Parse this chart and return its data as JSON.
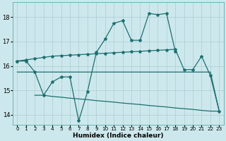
{
  "background_color": "#cde8ec",
  "grid_color": "#aacdd4",
  "line_color": "#1a7070",
  "x_label": "Humidex (Indice chaleur)",
  "xlim": [
    -0.5,
    23.5
  ],
  "ylim": [
    13.6,
    18.6
  ],
  "yticks": [
    14,
    15,
    16,
    17,
    18
  ],
  "xtick_labels": [
    "0",
    "1",
    "2",
    "3",
    "4",
    "5",
    "6",
    "7",
    "8",
    "9",
    "10",
    "11",
    "12",
    "13",
    "14",
    "15",
    "16",
    "17",
    "18",
    "19",
    "20",
    "21",
    "22",
    "23"
  ],
  "line1_x": [
    0,
    1,
    2,
    3,
    4,
    5,
    6,
    7,
    8,
    9,
    10,
    11,
    12,
    13,
    14,
    15,
    16,
    17,
    18
  ],
  "line1_y": [
    16.2,
    16.2,
    15.75,
    14.8,
    15.35,
    15.55,
    15.55,
    13.75,
    14.95,
    16.55,
    17.1,
    17.75,
    17.85,
    17.05,
    17.05,
    18.15,
    18.1,
    18.15,
    16.6
  ],
  "line2_x": [
    0,
    1,
    2,
    3,
    4,
    5,
    6,
    7,
    8,
    9,
    10,
    11,
    12,
    13,
    14,
    15,
    16,
    17,
    18,
    19,
    20,
    21,
    22,
    23
  ],
  "line2_y": [
    16.2,
    16.25,
    16.3,
    16.35,
    16.4,
    16.42,
    16.44,
    16.46,
    16.48,
    16.5,
    16.52,
    16.54,
    16.56,
    16.58,
    16.6,
    16.62,
    16.64,
    16.66,
    16.68,
    15.85,
    15.85,
    16.4,
    15.6,
    14.15
  ],
  "line3_x": [
    0,
    1,
    2,
    3,
    4,
    5,
    6,
    7,
    8,
    9,
    10,
    11,
    12,
    13,
    14,
    15,
    16,
    17,
    18,
    19,
    20,
    21,
    22,
    23
  ],
  "line3_y": [
    15.75,
    15.75,
    15.75,
    15.75,
    15.75,
    15.75,
    15.75,
    15.75,
    15.75,
    15.75,
    15.75,
    15.75,
    15.75,
    15.75,
    15.75,
    15.75,
    15.75,
    15.75,
    15.75,
    15.75,
    15.75,
    15.75,
    15.75,
    14.15
  ],
  "line4_x": [
    2,
    3,
    4,
    5,
    6,
    7,
    8,
    9,
    10,
    11,
    12,
    13,
    14,
    15,
    16,
    17,
    18,
    19,
    20,
    21,
    22,
    23
  ],
  "line4_y": [
    14.8,
    14.8,
    14.75,
    14.72,
    14.68,
    14.65,
    14.62,
    14.58,
    14.55,
    14.52,
    14.48,
    14.45,
    14.42,
    14.38,
    14.35,
    14.32,
    14.28,
    14.25,
    14.22,
    14.18,
    14.15,
    14.15
  ]
}
